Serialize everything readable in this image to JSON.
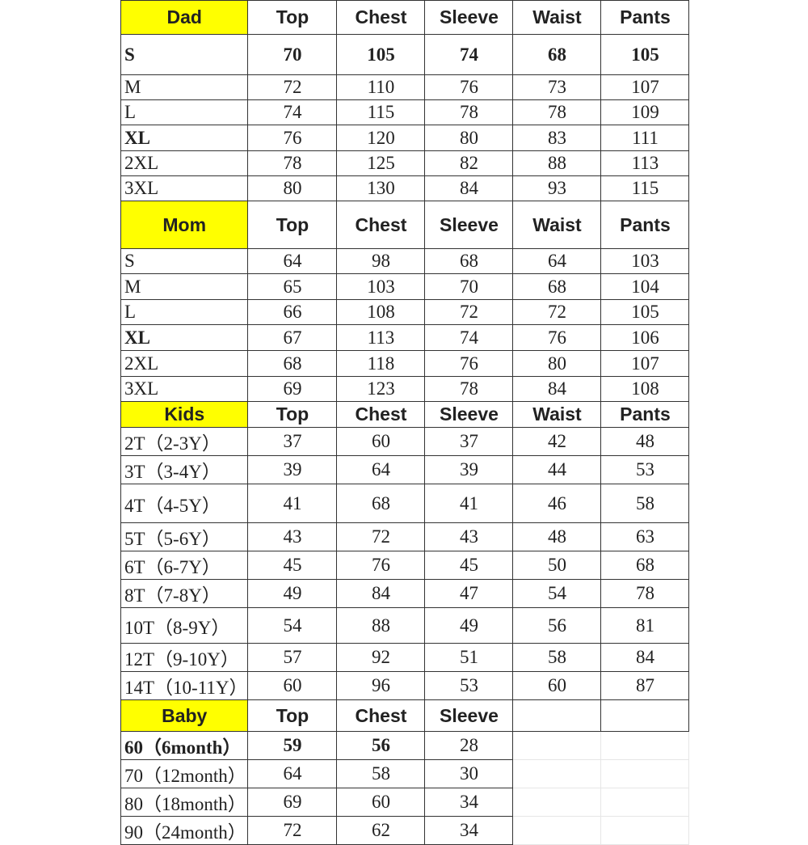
{
  "sections": [
    {
      "title": "Dad",
      "headers": [
        "Top",
        "Chest",
        "Sleeve",
        "Waist",
        "Pants"
      ],
      "rows": [
        {
          "size": "S",
          "values": [
            "70",
            "105",
            "74",
            "68",
            "105"
          ]
        },
        {
          "size": "M",
          "values": [
            "72",
            "110",
            "76",
            "73",
            "107"
          ]
        },
        {
          "size": "L",
          "values": [
            "74",
            "115",
            "78",
            "78",
            "109"
          ]
        },
        {
          "size": "XL",
          "values": [
            "76",
            "120",
            "80",
            "83",
            "111"
          ]
        },
        {
          "size": "2XL",
          "values": [
            "78",
            "125",
            "82",
            "88",
            "113"
          ]
        },
        {
          "size": "3XL",
          "values": [
            "80",
            "130",
            "84",
            "93",
            "115"
          ]
        }
      ]
    },
    {
      "title": "Mom",
      "headers": [
        "Top",
        "Chest",
        "Sleeve",
        "Waist",
        "Pants"
      ],
      "rows": [
        {
          "size": "S",
          "values": [
            "64",
            "98",
            "68",
            "64",
            "103"
          ]
        },
        {
          "size": "M",
          "values": [
            "65",
            "103",
            "70",
            "68",
            "104"
          ]
        },
        {
          "size": "L",
          "values": [
            "66",
            "108",
            "72",
            "72",
            "105"
          ]
        },
        {
          "size": "XL",
          "values": [
            "67",
            "113",
            "74",
            "76",
            "106"
          ]
        },
        {
          "size": "2XL",
          "values": [
            "68",
            "118",
            "76",
            "80",
            "107"
          ]
        },
        {
          "size": "3XL",
          "values": [
            "69",
            "123",
            "78",
            "84",
            "108"
          ]
        }
      ]
    },
    {
      "title": "Kids",
      "headers": [
        "Top",
        "Chest",
        "Sleeve",
        "Waist",
        "Pants"
      ],
      "rows": [
        {
          "size": "2T（2-3Y）",
          "values": [
            "37",
            "60",
            "37",
            "42",
            "48"
          ]
        },
        {
          "size": "3T（3-4Y）",
          "values": [
            "39",
            "64",
            "39",
            "44",
            "53"
          ]
        },
        {
          "size": "4T（4-5Y）",
          "values": [
            "41",
            "68",
            "41",
            "46",
            "58"
          ]
        },
        {
          "size": "5T（5-6Y）",
          "values": [
            "43",
            "72",
            "43",
            "48",
            "63"
          ]
        },
        {
          "size": "6T（6-7Y）",
          "values": [
            "45",
            "76",
            "45",
            "50",
            "68"
          ]
        },
        {
          "size": "8T（7-8Y）",
          "values": [
            "49",
            "84",
            "47",
            "54",
            "78"
          ]
        },
        {
          "size": "10T（8-9Y）",
          "values": [
            "54",
            "88",
            "49",
            "56",
            "81"
          ]
        },
        {
          "size": "12T（9-10Y）",
          "values": [
            "57",
            "92",
            "51",
            "58",
            "84"
          ]
        },
        {
          "size": "14T（10-11Y）",
          "values": [
            "60",
            "96",
            "53",
            "60",
            "87"
          ]
        }
      ]
    },
    {
      "title": "Baby",
      "headers": [
        "Top",
        "Chest",
        "Sleeve",
        "",
        ""
      ],
      "rows": [
        {
          "size": "60（6month）",
          "values": [
            "59",
            "56",
            "28",
            "",
            ""
          ]
        },
        {
          "size": "70（12month）",
          "values": [
            "64",
            "58",
            "30",
            "",
            ""
          ]
        },
        {
          "size": "80（18month）",
          "values": [
            "69",
            "60",
            "34",
            "",
            ""
          ]
        },
        {
          "size": "90（24month）",
          "values": [
            "72",
            "62",
            "34",
            "",
            ""
          ]
        }
      ]
    }
  ],
  "colors": {
    "section_header_bg": "#ffff00",
    "border": "#333333"
  }
}
